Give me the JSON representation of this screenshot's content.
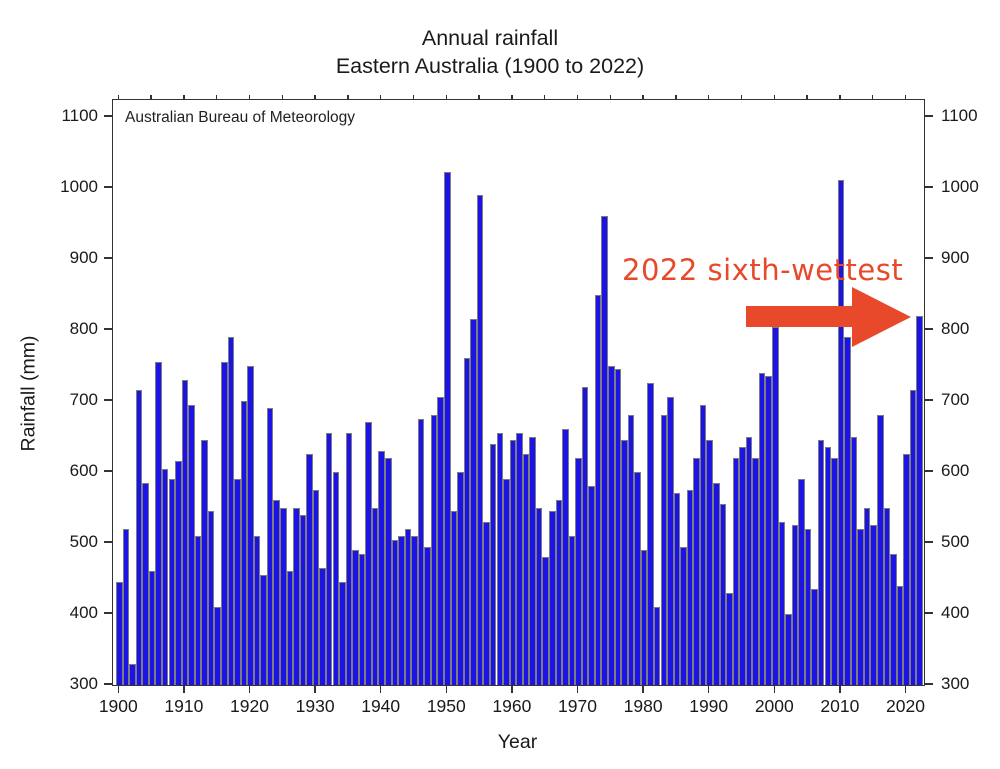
{
  "title": {
    "line1": "Annual rainfall",
    "line2": "Eastern Australia (1900 to 2022)"
  },
  "source_label": "Australian Bureau of Meteorology",
  "annotation": {
    "text": "2022 sixth-wettest",
    "color": "#e8492a",
    "arrow_points_to_year": 2022
  },
  "axes": {
    "y_label": "Rainfall (mm)",
    "x_label": "Year",
    "y_ticks": [
      300,
      400,
      500,
      600,
      700,
      800,
      900,
      1000,
      1100
    ],
    "x_ticks": [
      1900,
      1910,
      1920,
      1930,
      1940,
      1950,
      1960,
      1970,
      1980,
      1990,
      2000,
      2010,
      2020
    ]
  },
  "colors": {
    "bar_fill": "#1c13e6",
    "bar_border": "#7d7d7d",
    "axis": "#333333",
    "annotation": "#e8492a"
  },
  "chart_data": {
    "type": "bar",
    "title": "Annual rainfall Eastern Australia (1900 to 2022)",
    "xlabel": "Year",
    "ylabel": "Rainfall (mm)",
    "ylim": [
      300,
      1124
    ],
    "xlim": [
      1899,
      2023
    ],
    "grid": false,
    "legend": "none",
    "years": [
      1900,
      1901,
      1902,
      1903,
      1904,
      1905,
      1906,
      1907,
      1908,
      1909,
      1910,
      1911,
      1912,
      1913,
      1914,
      1915,
      1916,
      1917,
      1918,
      1919,
      1920,
      1921,
      1922,
      1923,
      1924,
      1925,
      1926,
      1927,
      1928,
      1929,
      1930,
      1931,
      1932,
      1933,
      1934,
      1935,
      1936,
      1937,
      1938,
      1939,
      1940,
      1941,
      1942,
      1943,
      1944,
      1945,
      1946,
      1947,
      1948,
      1949,
      1950,
      1951,
      1952,
      1953,
      1954,
      1955,
      1956,
      1957,
      1958,
      1959,
      1960,
      1961,
      1962,
      1963,
      1964,
      1965,
      1966,
      1967,
      1968,
      1969,
      1970,
      1971,
      1972,
      1973,
      1974,
      1975,
      1976,
      1977,
      1978,
      1979,
      1980,
      1981,
      1982,
      1983,
      1984,
      1985,
      1986,
      1987,
      1988,
      1989,
      1990,
      1991,
      1992,
      1993,
      1994,
      1995,
      1996,
      1997,
      1998,
      1999,
      2000,
      2001,
      2002,
      2003,
      2004,
      2005,
      2006,
      2007,
      2008,
      2009,
      2010,
      2011,
      2012,
      2013,
      2014,
      2015,
      2016,
      2017,
      2018,
      2019,
      2020,
      2021,
      2022
    ],
    "values": [
      445,
      520,
      330,
      715,
      585,
      460,
      755,
      605,
      590,
      615,
      730,
      695,
      510,
      645,
      545,
      410,
      755,
      790,
      590,
      700,
      750,
      510,
      455,
      690,
      560,
      550,
      460,
      550,
      540,
      625,
      575,
      465,
      655,
      600,
      445,
      655,
      490,
      485,
      670,
      550,
      630,
      620,
      505,
      510,
      520,
      510,
      675,
      495,
      680,
      705,
      1022,
      545,
      600,
      760,
      815,
      990,
      530,
      640,
      655,
      590,
      645,
      655,
      625,
      650,
      550,
      480,
      545,
      560,
      660,
      510,
      620,
      720,
      580,
      850,
      960,
      750,
      745,
      645,
      680,
      600,
      490,
      725,
      410,
      680,
      705,
      570,
      495,
      575,
      620,
      695,
      645,
      585,
      555,
      430,
      620,
      635,
      650,
      620,
      740,
      735,
      805,
      530,
      400,
      525,
      590,
      520,
      435,
      645,
      635,
      620,
      1012,
      790,
      650,
      520,
      550,
      525,
      680,
      550,
      485,
      440,
      625,
      715,
      820
    ]
  }
}
